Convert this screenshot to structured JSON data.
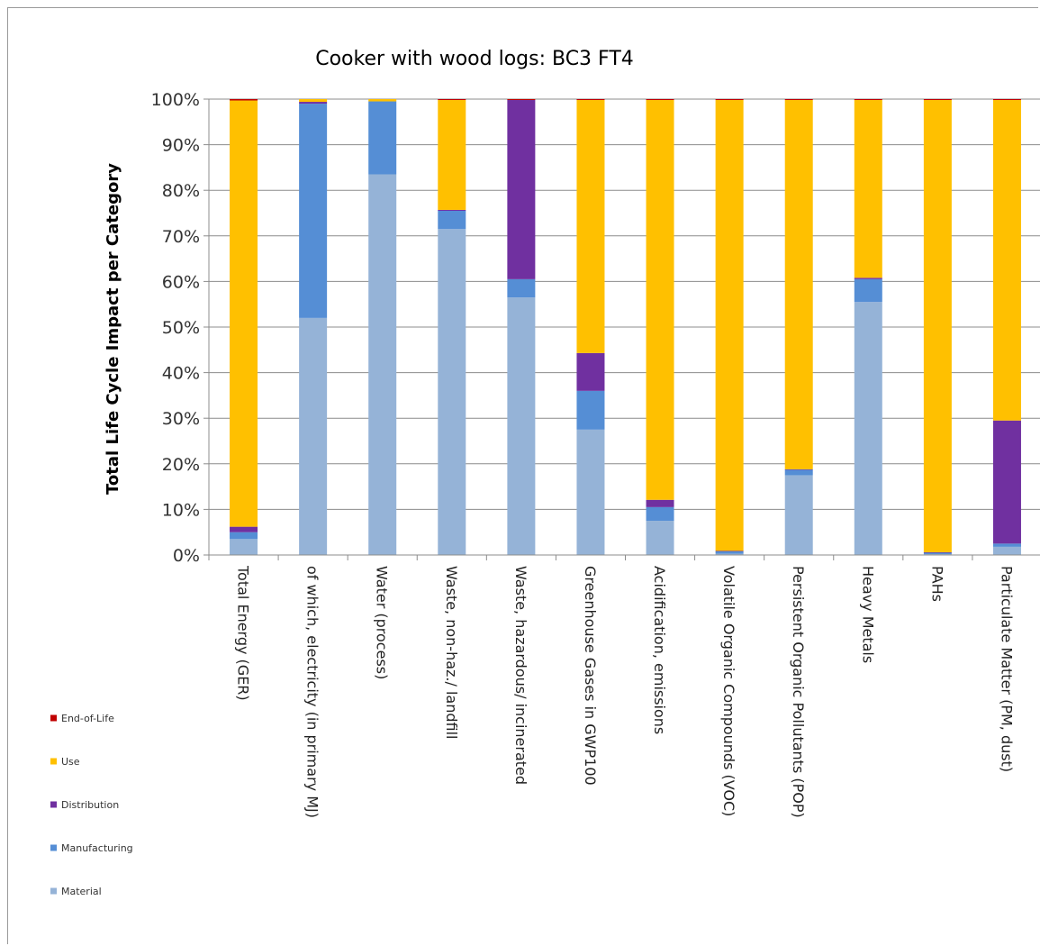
{
  "chart_data": {
    "type": "bar",
    "stacked": true,
    "title": "Cooker with wood logs: BC3 FT4",
    "xlabel": "",
    "ylabel": "Total Life Cycle Impact per Category",
    "ylim": [
      0,
      100
    ],
    "yticks": [
      "0%",
      "10%",
      "20%",
      "30%",
      "40%",
      "50%",
      "60%",
      "70%",
      "80%",
      "90%",
      "100%"
    ],
    "grid": true,
    "legend_position": "bottom-left",
    "categories": [
      "Total Energy (GER)",
      "of which, electricity (in primary MJ)",
      "Water (process)",
      "Waste, non-haz./ landfill",
      "Waste, hazardous/ incinerated",
      "Greenhouse Gases in GWP100",
      "Acidification, emissions",
      "Volatile Organic Compounds (VOC)",
      "Persistent Organic Pollutants (POP)",
      "Heavy Metals",
      "PAHs",
      "Particulate Matter (PM, dust)"
    ],
    "series": [
      {
        "name": "Material",
        "color": "#95B3D7",
        "values": [
          3.5,
          52,
          83.5,
          71.5,
          56.5,
          27.5,
          7.5,
          0.3,
          17.5,
          55.5,
          0.2,
          1.8
        ]
      },
      {
        "name": "Manufacturing",
        "color": "#558ED5",
        "values": [
          1.5,
          47,
          16,
          4,
          4,
          8.5,
          3,
          0.5,
          1.2,
          5,
          0.3,
          0.7
        ]
      },
      {
        "name": "Distribution",
        "color": "#7030A0",
        "values": [
          1.2,
          0.4,
          0,
          0.2,
          39.3,
          8.3,
          1.6,
          0.1,
          0.1,
          0.3,
          0.1,
          27
        ]
      },
      {
        "name": "Use",
        "color": "#FFC000",
        "values": [
          93.5,
          0.6,
          0.5,
          24.1,
          0,
          55.5,
          87.7,
          98.9,
          81,
          39,
          99.2,
          70.3
        ]
      },
      {
        "name": "End-of-Life",
        "color": "#C00000",
        "values": [
          0.3,
          0,
          0,
          0.2,
          0.2,
          0.2,
          0.2,
          0.2,
          0.2,
          0.2,
          0.2,
          0.2
        ]
      }
    ],
    "legend_order": [
      "End-of-Life",
      "Use",
      "Distribution",
      "Manufacturing",
      "Material"
    ]
  }
}
